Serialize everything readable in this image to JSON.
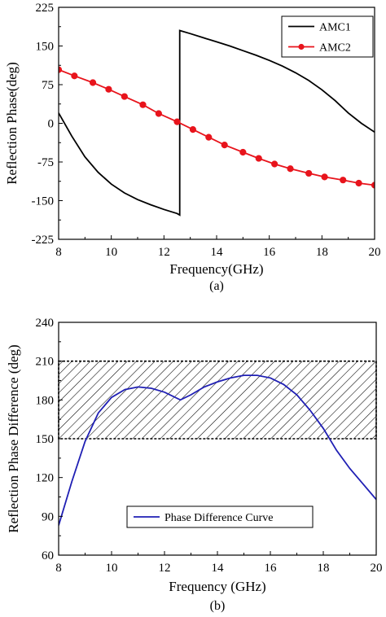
{
  "chart_data": [
    {
      "type": "line",
      "panel_label": "(a)",
      "xlabel": "Frequency(GHz)",
      "ylabel": "Reflection Phase(deg)",
      "xlim": [
        8,
        20
      ],
      "ylim": [
        -225,
        225
      ],
      "xticks": [
        8,
        10,
        12,
        14,
        16,
        18,
        20
      ],
      "yticks": [
        -225,
        -150,
        -75,
        0,
        75,
        150,
        225
      ],
      "grid": false,
      "legend_position": "top-right",
      "series": [
        {
          "name": "AMC1",
          "color": "#000000",
          "marker": "none",
          "x": [
            8.0,
            8.5,
            9.0,
            9.5,
            10.0,
            10.5,
            11.0,
            11.5,
            12.0,
            12.5,
            12.6,
            12.6,
            13.0,
            13.5,
            14.0,
            14.5,
            15.0,
            15.5,
            16.0,
            16.5,
            17.0,
            17.5,
            18.0,
            18.5,
            19.0,
            19.5,
            20.0
          ],
          "values": [
            20,
            -25,
            -65,
            -95,
            -118,
            -135,
            -148,
            -158,
            -167,
            -175,
            -178,
            180,
            174,
            166,
            158,
            150,
            141,
            132,
            122,
            111,
            98,
            83,
            65,
            44,
            20,
            0,
            -17
          ]
        },
        {
          "name": "AMC2",
          "color": "#e8141c",
          "marker": "circle",
          "x": [
            8.0,
            8.6,
            9.3,
            9.9,
            10.5,
            11.2,
            11.8,
            12.5,
            13.1,
            13.7,
            14.3,
            15.0,
            15.6,
            16.2,
            16.8,
            17.5,
            18.1,
            18.8,
            19.4,
            20.0
          ],
          "values": [
            104,
            92,
            79,
            66,
            52,
            36,
            19,
            3,
            -12,
            -27,
            -42,
            -56,
            -68,
            -79,
            -88,
            -97,
            -104,
            -110,
            -116,
            -120
          ]
        }
      ]
    },
    {
      "type": "line",
      "panel_label": "(b)",
      "xlabel": "Frequency (GHz)",
      "ylabel": "Reflection Phase Difference (deg)",
      "xlim": [
        8,
        20
      ],
      "ylim": [
        60,
        240
      ],
      "xticks": [
        8,
        10,
        12,
        14,
        16,
        18,
        20
      ],
      "yticks": [
        60,
        90,
        120,
        150,
        180,
        210,
        240
      ],
      "grid": false,
      "legend_position": "bottom-center",
      "shaded_band": {
        "from": 150,
        "to": 210,
        "pattern": "diagonal-hatch"
      },
      "series": [
        {
          "name": "Phase Difference Curve",
          "color": "#1f1fb4",
          "marker": "none",
          "x": [
            8.0,
            8.5,
            9.0,
            9.5,
            10.0,
            10.5,
            11.0,
            11.5,
            12.0,
            12.6,
            13.0,
            13.5,
            14.0,
            14.5,
            15.0,
            15.5,
            16.0,
            16.5,
            17.0,
            17.5,
            18.0,
            18.5,
            19.0,
            19.5,
            20.0
          ],
          "values": [
            83,
            117,
            148,
            170,
            182,
            188,
            190,
            189,
            186,
            180,
            184,
            190,
            194,
            197,
            199,
            199,
            197,
            192,
            184,
            172,
            158,
            141,
            127,
            115,
            103
          ]
        }
      ]
    }
  ]
}
